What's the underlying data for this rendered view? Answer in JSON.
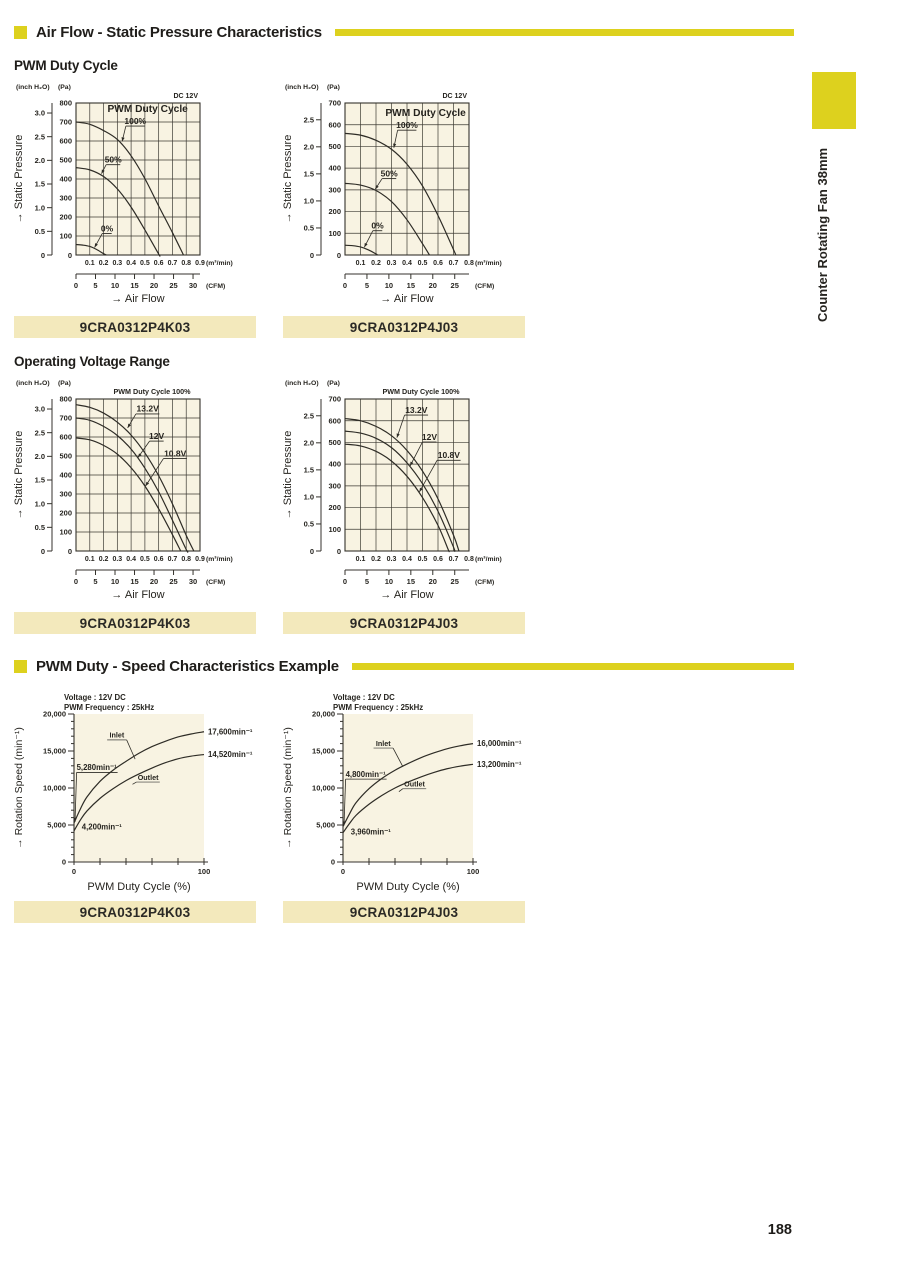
{
  "colors": {
    "accent_yellow": "#ddd11e",
    "part_bar_bg": "#f3e9bc",
    "plot_bg": "#f8f3e2",
    "curve": "#2e2c26",
    "text": "#26241f"
  },
  "sections": [
    {
      "title": "Air Flow - Static Pressure Characteristics",
      "subsections": [
        "PWM Duty Cycle",
        "Operating Voltage Range"
      ]
    },
    {
      "title": "PWM Duty - Speed Characteristics Example"
    }
  ],
  "side_tab": {
    "label": "Counter Rotating Fan 38mm"
  },
  "page_number": "188",
  "chart_data": [
    {
      "kind": "pressure",
      "type": "line",
      "part_number": "9CRA0312P4K03",
      "corner_label": "DC 12V",
      "inside_title": {
        "text": "PWM Duty Cycle",
        "pos": [
          0.52,
          752
        ]
      },
      "xlabel": "→ Air Flow",
      "ylabel": "→ Static Pressure",
      "x_axis": {
        "unit": "(m³/min)",
        "max": 0.9,
        "step": 0.1
      },
      "cfm_axis": {
        "unit": "(CFM)",
        "max": 30,
        "step": 5
      },
      "y_axis": {
        "unit": "(Pa)",
        "max": 800,
        "step": 100
      },
      "inch_axis": {
        "unit": "(inch H₂O)",
        "max": 3.0,
        "step": 0.5
      },
      "series": [
        {
          "label": "100%",
          "label_pos": [
            0.43,
            690
          ],
          "arrow_to": [
            0.335,
            598
          ],
          "points": [
            [
              0,
              700
            ],
            [
              0.1,
              688
            ],
            [
              0.2,
              655
            ],
            [
              0.3,
              608
            ],
            [
              0.4,
              522
            ],
            [
              0.5,
              402
            ],
            [
              0.6,
              258
            ],
            [
              0.7,
              118
            ],
            [
              0.78,
              0
            ]
          ]
        },
        {
          "label": "50%",
          "label_pos": [
            0.27,
            487
          ],
          "arrow_to": [
            0.185,
            428
          ],
          "points": [
            [
              0,
              460
            ],
            [
              0.1,
              448
            ],
            [
              0.2,
              413
            ],
            [
              0.3,
              348
            ],
            [
              0.4,
              252
            ],
            [
              0.5,
              132
            ],
            [
              0.6,
              5
            ],
            [
              0.605,
              0
            ]
          ]
        },
        {
          "label": "0%",
          "label_pos": [
            0.225,
            125
          ],
          "arrow_to": [
            0.135,
            40
          ],
          "points": [
            [
              0,
              55
            ],
            [
              0.05,
              52
            ],
            [
              0.1,
              45
            ],
            [
              0.15,
              29
            ],
            [
              0.2,
              7
            ],
            [
              0.22,
              0
            ]
          ]
        }
      ]
    },
    {
      "kind": "pressure",
      "type": "line",
      "part_number": "9CRA0312P4J03",
      "corner_label": "DC 12V",
      "inside_title": {
        "text": "PWM Duty Cycle",
        "pos": [
          0.52,
          640
        ]
      },
      "xlabel": "→ Air Flow",
      "ylabel": "→ Static Pressure",
      "x_axis": {
        "unit": "(m³/min)",
        "max": 0.8,
        "step": 0.1
      },
      "cfm_axis": {
        "unit": "(CFM)",
        "max": 25,
        "step": 5
      },
      "y_axis": {
        "unit": "(Pa)",
        "max": 700,
        "step": 100
      },
      "inch_axis": {
        "unit": "(inch H₂O)",
        "max": 2.5,
        "step": 0.5
      },
      "series": [
        {
          "label": "100%",
          "label_pos": [
            0.4,
            585
          ],
          "arrow_to": [
            0.315,
            494
          ],
          "points": [
            [
              0,
              560
            ],
            [
              0.1,
              552
            ],
            [
              0.2,
              528
            ],
            [
              0.3,
              487
            ],
            [
              0.4,
              418
            ],
            [
              0.5,
              318
            ],
            [
              0.6,
              182
            ],
            [
              0.7,
              25
            ],
            [
              0.715,
              0
            ]
          ]
        },
        {
          "label": "50%",
          "label_pos": [
            0.285,
            362
          ],
          "arrow_to": [
            0.195,
            303
          ],
          "points": [
            [
              0,
              330
            ],
            [
              0.1,
              322
            ],
            [
              0.2,
              297
            ],
            [
              0.3,
              246
            ],
            [
              0.4,
              162
            ],
            [
              0.5,
              52
            ],
            [
              0.545,
              0
            ]
          ]
        },
        {
          "label": "0%",
          "label_pos": [
            0.21,
            122
          ],
          "arrow_to": [
            0.125,
            36
          ],
          "points": [
            [
              0,
              45
            ],
            [
              0.05,
              43
            ],
            [
              0.1,
              37
            ],
            [
              0.15,
              24
            ],
            [
              0.2,
              5
            ],
            [
              0.21,
              0
            ]
          ]
        }
      ]
    },
    {
      "kind": "pressure",
      "type": "line",
      "part_number": "9CRA0312P4K03",
      "top_label": "PWM Duty Cycle 100%",
      "xlabel": "→ Air Flow",
      "ylabel": "→ Static Pressure",
      "x_axis": {
        "unit": "(m³/min)",
        "max": 0.9,
        "step": 0.1
      },
      "cfm_axis": {
        "unit": "(CFM)",
        "max": 30,
        "step": 5
      },
      "y_axis": {
        "unit": "(Pa)",
        "max": 800,
        "step": 100
      },
      "inch_axis": {
        "unit": "(inch H₂O)",
        "max": 3.0,
        "step": 0.5
      },
      "series": [
        {
          "label": "13.2V",
          "label_pos": [
            0.52,
            733
          ],
          "arrow_to": [
            0.375,
            648
          ],
          "points": [
            [
              0,
              770
            ],
            [
              0.1,
              756
            ],
            [
              0.2,
              726
            ],
            [
              0.3,
              678
            ],
            [
              0.4,
              610
            ],
            [
              0.5,
              516
            ],
            [
              0.6,
              396
            ],
            [
              0.7,
              248
            ],
            [
              0.8,
              82
            ],
            [
              0.855,
              0
            ]
          ]
        },
        {
          "label": "12V",
          "label_pos": [
            0.585,
            590
          ],
          "arrow_to": [
            0.45,
            492
          ],
          "points": [
            [
              0,
              700
            ],
            [
              0.1,
              688
            ],
            [
              0.2,
              656
            ],
            [
              0.3,
              608
            ],
            [
              0.4,
              536
            ],
            [
              0.5,
              436
            ],
            [
              0.6,
              312
            ],
            [
              0.7,
              162
            ],
            [
              0.8,
              8
            ],
            [
              0.81,
              0
            ]
          ]
        },
        {
          "label": "10.8V",
          "label_pos": [
            0.72,
            498
          ],
          "arrow_to": [
            0.505,
            342
          ],
          "points": [
            [
              0,
              595
            ],
            [
              0.1,
              585
            ],
            [
              0.2,
              556
            ],
            [
              0.3,
              510
            ],
            [
              0.4,
              438
            ],
            [
              0.5,
              342
            ],
            [
              0.6,
              222
            ],
            [
              0.7,
              86
            ],
            [
              0.76,
              0
            ]
          ]
        }
      ]
    },
    {
      "kind": "pressure",
      "type": "line",
      "part_number": "9CRA0312P4J03",
      "top_label": "PWM Duty Cycle 100%",
      "xlabel": "→ Air Flow",
      "ylabel": "→ Static Pressure",
      "x_axis": {
        "unit": "(m³/min)",
        "max": 0.8,
        "step": 0.1
      },
      "cfm_axis": {
        "unit": "(CFM)",
        "max": 25,
        "step": 5
      },
      "y_axis": {
        "unit": "(Pa)",
        "max": 700,
        "step": 100
      },
      "inch_axis": {
        "unit": "(inch H₂O)",
        "max": 2.5,
        "step": 0.5
      },
      "series": [
        {
          "label": "13.2V",
          "label_pos": [
            0.46,
            636
          ],
          "arrow_to": [
            0.335,
            522
          ],
          "points": [
            [
              0,
              610
            ],
            [
              0.1,
              600
            ],
            [
              0.2,
              574
            ],
            [
              0.3,
              531
            ],
            [
              0.4,
              463
            ],
            [
              0.5,
              368
            ],
            [
              0.6,
              240
            ],
            [
              0.7,
              73
            ],
            [
              0.735,
              0
            ]
          ]
        },
        {
          "label": "12V",
          "label_pos": [
            0.545,
            512
          ],
          "arrow_to": [
            0.42,
            392
          ],
          "points": [
            [
              0,
              552
            ],
            [
              0.1,
              543
            ],
            [
              0.2,
              519
            ],
            [
              0.3,
              476
            ],
            [
              0.4,
              406
            ],
            [
              0.5,
              310
            ],
            [
              0.6,
              183
            ],
            [
              0.7,
              18
            ],
            [
              0.705,
              0
            ]
          ]
        },
        {
          "label": "10.8V",
          "label_pos": [
            0.67,
            428
          ],
          "arrow_to": [
            0.48,
            272
          ],
          "points": [
            [
              0,
              492
            ],
            [
              0.1,
              484
            ],
            [
              0.2,
              459
            ],
            [
              0.3,
              414
            ],
            [
              0.4,
              344
            ],
            [
              0.5,
              246
            ],
            [
              0.6,
              118
            ],
            [
              0.665,
              8
            ],
            [
              0.67,
              0
            ]
          ]
        }
      ]
    },
    {
      "kind": "speed",
      "type": "line",
      "part_number": "9CRA0312P4K03",
      "header_lines": [
        "Voltage : 12V DC",
        "PWM Frequency : 25kHz"
      ],
      "x_axis": {
        "label": "PWM Duty Cycle (%)",
        "max": 100,
        "ticks": [
          0,
          20,
          40,
          60,
          80,
          100
        ],
        "labeled": [
          0,
          100
        ]
      },
      "y_axis": {
        "label": "→ Rotation Speed (min⁻¹)",
        "max": 20000,
        "major_step": 5000,
        "minor_step": 1000
      },
      "series": [
        {
          "name": "Inlet",
          "name_pos": [
            33,
            16800
          ],
          "name_target": [
            47,
            13900
          ],
          "start_label": "5,280min⁻¹",
          "start_pos": [
            2,
            12400
          ],
          "start_target": [
            0,
            5280
          ],
          "end_label": "17,600min⁻¹",
          "points": [
            [
              0,
              5280
            ],
            [
              5,
              7200
            ],
            [
              10,
              8800
            ],
            [
              20,
              10900
            ],
            [
              30,
              12400
            ],
            [
              40,
              13600
            ],
            [
              50,
              14700
            ],
            [
              60,
              15600
            ],
            [
              70,
              16300
            ],
            [
              80,
              16900
            ],
            [
              90,
              17300
            ],
            [
              100,
              17600
            ]
          ]
        },
        {
          "name": "Outlet",
          "name_pos": [
            57,
            11100
          ],
          "name_target": [
            45,
            10500
          ],
          "start_label": "4,200min⁻¹",
          "start_pos": [
            6,
            4400
          ],
          "end_label": "14,520min⁻¹",
          "points": [
            [
              0,
              4200
            ],
            [
              5,
              5700
            ],
            [
              10,
              6900
            ],
            [
              20,
              8600
            ],
            [
              30,
              9900
            ],
            [
              40,
              11000
            ],
            [
              50,
              11900
            ],
            [
              60,
              12700
            ],
            [
              70,
              13400
            ],
            [
              80,
              13950
            ],
            [
              90,
              14300
            ],
            [
              100,
              14520
            ]
          ]
        }
      ]
    },
    {
      "kind": "speed",
      "type": "line",
      "part_number": "9CRA0312P4J03",
      "header_lines": [
        "Voltage : 12V DC",
        "PWM Frequency : 25kHz"
      ],
      "x_axis": {
        "label": "PWM Duty Cycle (%)",
        "max": 100,
        "ticks": [
          0,
          20,
          40,
          60,
          80,
          100
        ],
        "labeled": [
          0,
          100
        ]
      },
      "y_axis": {
        "label": "→ Rotation Speed (min⁻¹)",
        "max": 20000,
        "major_step": 5000,
        "minor_step": 1000
      },
      "series": [
        {
          "name": "Inlet",
          "name_pos": [
            31,
            15700
          ],
          "name_target": [
            46,
            12900
          ],
          "start_label": "4,800min⁻¹",
          "start_pos": [
            2,
            11500
          ],
          "start_target": [
            0,
            4800
          ],
          "end_label": "16,000min⁻¹",
          "points": [
            [
              0,
              4800
            ],
            [
              5,
              6500
            ],
            [
              10,
              8000
            ],
            [
              20,
              9900
            ],
            [
              30,
              11300
            ],
            [
              40,
              12400
            ],
            [
              50,
              13300
            ],
            [
              60,
              14100
            ],
            [
              70,
              14750
            ],
            [
              80,
              15300
            ],
            [
              90,
              15700
            ],
            [
              100,
              16000
            ]
          ]
        },
        {
          "name": "Outlet",
          "name_pos": [
            55,
            10200
          ],
          "name_target": [
            43,
            9500
          ],
          "start_label": "3,960min⁻¹",
          "start_pos": [
            6,
            3700
          ],
          "end_label": "13,200min⁻¹",
          "points": [
            [
              0,
              3960
            ],
            [
              5,
              5200
            ],
            [
              10,
              6300
            ],
            [
              20,
              7800
            ],
            [
              30,
              9000
            ],
            [
              40,
              10000
            ],
            [
              50,
              10800
            ],
            [
              60,
              11500
            ],
            [
              70,
              12100
            ],
            [
              80,
              12600
            ],
            [
              90,
              12950
            ],
            [
              100,
              13200
            ]
          ]
        }
      ]
    }
  ]
}
